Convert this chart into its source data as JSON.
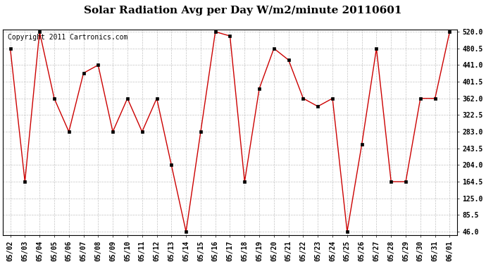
{
  "title": "Solar Radiation Avg per Day W/m2/minute 20110601",
  "copyright": "Copyright 2011 Cartronics.com",
  "dates": [
    "05/02",
    "05/03",
    "05/04",
    "05/05",
    "05/06",
    "05/07",
    "05/08",
    "05/09",
    "05/10",
    "05/11",
    "05/12",
    "05/13",
    "05/14",
    "05/15",
    "05/16",
    "05/17",
    "05/18",
    "05/19",
    "05/20",
    "05/21",
    "05/22",
    "05/23",
    "05/24",
    "05/25",
    "05/26",
    "05/27",
    "05/28",
    "05/29",
    "05/30",
    "05/31",
    "06/01"
  ],
  "values": [
    480.5,
    164.5,
    520.0,
    362.0,
    283.0,
    422.0,
    441.0,
    283.0,
    362.0,
    283.0,
    362.0,
    204.0,
    46.0,
    283.0,
    520.0,
    510.0,
    164.5,
    385.0,
    480.5,
    453.0,
    362.0,
    343.0,
    362.0,
    46.0,
    253.0,
    480.5,
    164.5,
    164.5,
    362.0,
    362.0,
    520.0
  ],
  "line_color": "#cc0000",
  "marker": "s",
  "marker_size": 2.5,
  "bg_color": "#ffffff",
  "grid_color": "#aaaaaa",
  "ylim_min": 46.0,
  "ylim_max": 520.0,
  "yticks": [
    46.0,
    85.5,
    125.0,
    164.5,
    204.0,
    243.5,
    283.0,
    322.5,
    362.0,
    401.5,
    441.0,
    480.5,
    520.0
  ],
  "ytick_labels": [
    "46.0",
    "85.5",
    "125.0",
    "164.5",
    "204.0",
    "243.5",
    "283.0",
    "322.5",
    "362.0",
    "401.5",
    "441.0",
    "480.5",
    "520.0"
  ],
  "title_fontsize": 11,
  "copyright_fontsize": 7,
  "tick_fontsize": 7,
  "figwidth": 6.9,
  "figheight": 3.75,
  "dpi": 100
}
